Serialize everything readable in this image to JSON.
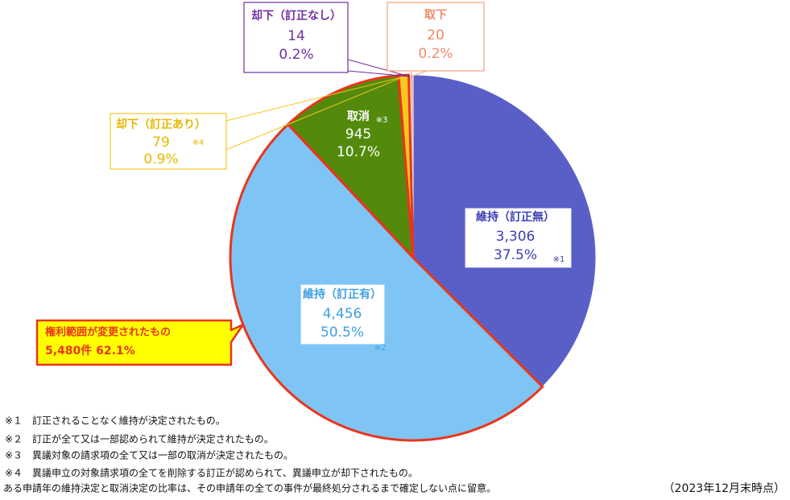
{
  "chart_data": {
    "type": "pie",
    "categories": [
      "維持（訂正無）",
      "維持（訂正有）",
      "取消",
      "却下（訂正あり）",
      "却下（訂正なし）",
      "取下"
    ],
    "values": [
      3306,
      4456,
      945,
      79,
      14,
      20
    ],
    "value_labels": [
      "3,306",
      "4,456",
      "945",
      "79",
      "14",
      "20"
    ],
    "percent_labels": [
      "37.5%",
      "50.5%",
      "10.7%",
      "0.9%",
      "0.2%",
      "0.2%"
    ],
    "note_marks": [
      "※1",
      "※2",
      "※3",
      "※4",
      null,
      null
    ],
    "colors": [
      "#5a5fc8",
      "#7ec5f5",
      "#538a0c",
      "#f7c81e",
      "#7030a0",
      "#f3a07a"
    ],
    "label_colors": [
      "#3b40b5",
      "#3fa0e0",
      "#ffffff",
      "#e6b800",
      "#7030a0",
      "#f08a6a"
    ],
    "outlined": [
      false,
      true,
      true,
      true,
      false,
      false
    ],
    "outline_color": "#e8361c",
    "highlight": {
      "title": "権利範囲が変更されたもの",
      "text": "5,480件 62.1%"
    },
    "footnotes": [
      "※１　訂正されることなく維持が決定されたもの。",
      "※２　訂正が全て又は一部認められて維持が決定されたもの。",
      "※３　異議対象の請求項の全て又は一部の取消が決定されたもの。",
      "※４　異議申立の対象請求項の全てを削除する訂正が認められて、異議申立が却下されたもの。",
      "ある申請年の維持決定と取消決定の比率は、その申請年の全ての事件が最終処分されるまで確定しない点に留意。"
    ],
    "as_of": "（2023年12月末時点）"
  }
}
